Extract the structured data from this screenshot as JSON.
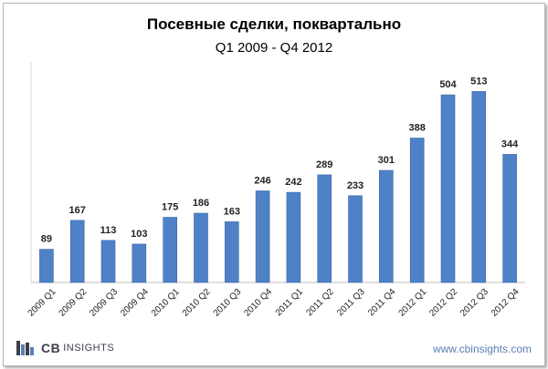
{
  "chart_data": {
    "type": "bar",
    "title": "Посевные сделки, поквартально",
    "subtitle": "Q1 2009 - Q4 2012",
    "categories": [
      "2009 Q1",
      "2009 Q2",
      "2009 Q3",
      "2009 Q4",
      "2010 Q1",
      "2010 Q2",
      "2010 Q3",
      "2010 Q4",
      "2011 Q1",
      "2011 Q2",
      "2011 Q3",
      "2011 Q4",
      "2012 Q1",
      "2012 Q2",
      "2012 Q3",
      "2012 Q4"
    ],
    "values": [
      89,
      167,
      113,
      103,
      175,
      186,
      163,
      246,
      242,
      289,
      233,
      301,
      388,
      504,
      513,
      344
    ],
    "ylim": [
      0,
      580
    ],
    "grid": false,
    "legend": "none",
    "bar_color": "#4f81c7",
    "bar_edge_color": "#3a67a6"
  },
  "branding": {
    "logo_cb": "CB",
    "logo_insights": "INSIGHTS",
    "website": "www.cbinsights.com"
  }
}
